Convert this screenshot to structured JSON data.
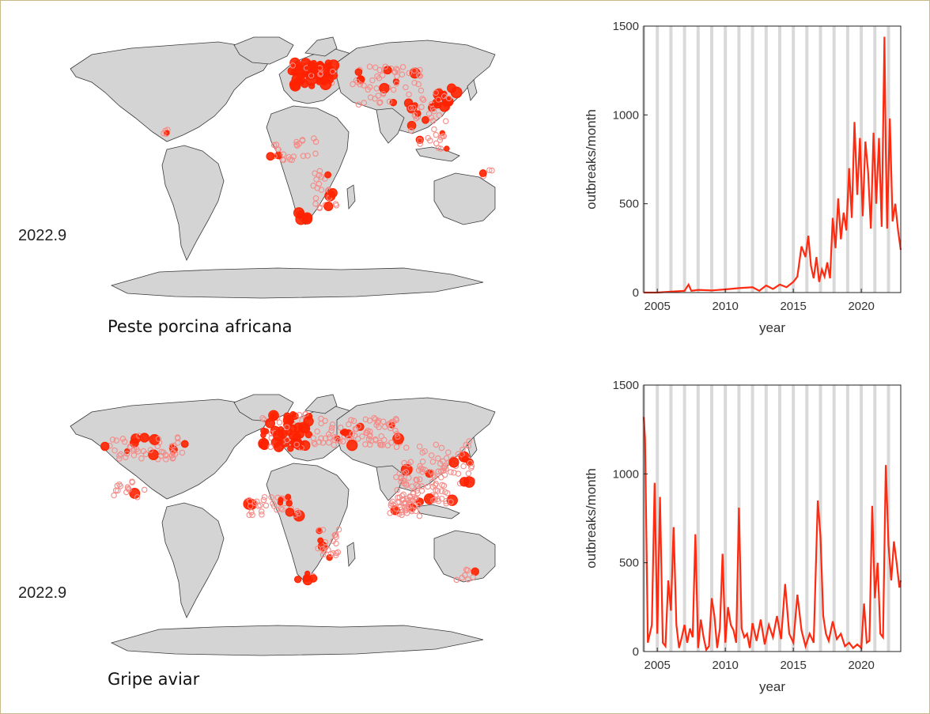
{
  "colors": {
    "land": "#d4d4d4",
    "coast": "#3a3a3a",
    "outbreak_recent": "#ff2200",
    "outbreak_older": "#f58a86",
    "line": "#ff2a10",
    "grid_band": "#d9d9d9"
  },
  "panels": [
    {
      "date_label": "2022.9",
      "caption": "Peste porcina africana"
    },
    {
      "date_label": "2022.9",
      "caption": "Gripe aviar"
    }
  ],
  "chart_data": [
    {
      "type": "line",
      "xlabel": "year",
      "ylabel": "outbreaks/month",
      "xlim": [
        2004.0,
        2022.9
      ],
      "ylim": [
        0,
        1500
      ],
      "xticks": [
        2005,
        2010,
        2015,
        2020
      ],
      "yticks": [
        0,
        500,
        1000,
        1500
      ],
      "grid": "vertical year bands",
      "series": [
        {
          "x": [
            2004.0,
            2005.0,
            2006.0,
            2007.0,
            2007.3,
            2007.5,
            2008.0,
            2009.0,
            2010.0,
            2011.0,
            2012.0,
            2012.5,
            2013.0,
            2013.5,
            2014.0,
            2014.5,
            2015.0,
            2015.3,
            2015.6,
            2015.9,
            2016.1,
            2016.3,
            2016.5,
            2016.7,
            2016.9,
            2017.1,
            2017.3,
            2017.5,
            2017.7,
            2017.9,
            2018.1,
            2018.3,
            2018.5,
            2018.7,
            2018.9,
            2019.1,
            2019.3,
            2019.5,
            2019.7,
            2019.9,
            2020.1,
            2020.3,
            2020.5,
            2020.7,
            2020.9,
            2021.1,
            2021.3,
            2021.5,
            2021.7,
            2021.8,
            2021.9,
            2022.1,
            2022.3,
            2022.5,
            2022.7,
            2022.9
          ],
          "y": [
            0,
            0,
            5,
            10,
            45,
            10,
            15,
            12,
            18,
            25,
            30,
            10,
            40,
            20,
            45,
            30,
            60,
            90,
            260,
            200,
            320,
            150,
            80,
            200,
            60,
            130,
            90,
            170,
            80,
            420,
            250,
            530,
            300,
            450,
            350,
            700,
            420,
            960,
            550,
            870,
            430,
            850,
            680,
            360,
            900,
            500,
            870,
            370,
            1440,
            800,
            360,
            980,
            400,
            500,
            350,
            240
          ]
        }
      ]
    },
    {
      "type": "line",
      "xlabel": "year",
      "ylabel": "outbreaks/month",
      "xlim": [
        2004.0,
        2022.9
      ],
      "ylim": [
        0,
        1500
      ],
      "xticks": [
        2005,
        2010,
        2015,
        2020
      ],
      "yticks": [
        0,
        500,
        1000,
        1500
      ],
      "grid": "vertical year bands",
      "series": [
        {
          "x": [
            2004.0,
            2004.1,
            2004.3,
            2004.6,
            2004.8,
            2005.0,
            2005.2,
            2005.4,
            2005.6,
            2005.8,
            2006.0,
            2006.2,
            2006.4,
            2006.6,
            2006.8,
            2007.0,
            2007.2,
            2007.4,
            2007.6,
            2007.8,
            2008.0,
            2008.2,
            2008.4,
            2008.6,
            2008.8,
            2009.0,
            2009.2,
            2009.4,
            2009.6,
            2009.8,
            2010.0,
            2010.2,
            2010.4,
            2010.6,
            2010.8,
            2011.0,
            2011.2,
            2011.4,
            2011.6,
            2011.8,
            2012.0,
            2012.3,
            2012.6,
            2012.9,
            2013.2,
            2013.5,
            2013.8,
            2014.1,
            2014.4,
            2014.7,
            2015.0,
            2015.3,
            2015.6,
            2015.9,
            2016.2,
            2016.5,
            2016.8,
            2017.0,
            2017.2,
            2017.4,
            2017.6,
            2017.9,
            2018.2,
            2018.5,
            2018.8,
            2019.1,
            2019.4,
            2019.7,
            2020.0,
            2020.2,
            2020.4,
            2020.6,
            2020.8,
            2021.0,
            2021.2,
            2021.4,
            2021.6,
            2021.8,
            2022.0,
            2022.2,
            2022.4,
            2022.6,
            2022.8,
            2022.9
          ],
          "y": [
            1320,
            1200,
            50,
            150,
            950,
            100,
            870,
            50,
            30,
            400,
            230,
            700,
            150,
            20,
            80,
            150,
            50,
            130,
            80,
            660,
            20,
            180,
            80,
            10,
            30,
            300,
            200,
            20,
            130,
            550,
            50,
            250,
            150,
            120,
            50,
            810,
            130,
            80,
            100,
            20,
            160,
            60,
            180,
            40,
            150,
            80,
            200,
            70,
            380,
            100,
            50,
            320,
            120,
            30,
            100,
            50,
            850,
            650,
            200,
            100,
            60,
            170,
            70,
            100,
            30,
            50,
            20,
            40,
            20,
            270,
            50,
            60,
            820,
            300,
            500,
            100,
            80,
            1050,
            600,
            400,
            620,
            500,
            360,
            400
          ]
        }
      ]
    }
  ]
}
